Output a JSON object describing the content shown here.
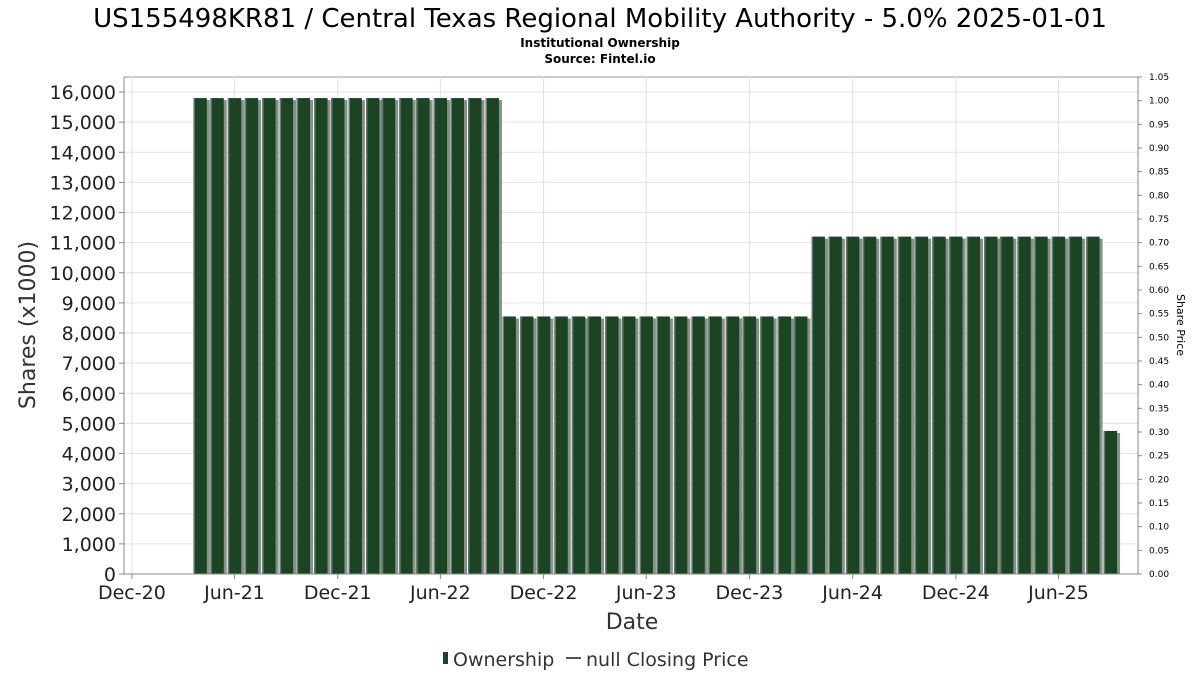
{
  "chart_data": {
    "type": "bar",
    "title": "US155498KR81 / Central Texas Regional Mobility Authority - 5.0% 2025-01-01",
    "subtitle_lines": [
      "Institutional Ownership",
      "Source: Fintel.io"
    ],
    "xlabel": "Date",
    "ylabel": "Shares (x1000)",
    "y2label": "Share Price",
    "x_ticks": [
      "Dec-20",
      "Jun-21",
      "Dec-21",
      "Jun-22",
      "Dec-22",
      "Jun-23",
      "Dec-23",
      "Jun-24",
      "Dec-24",
      "Jun-25"
    ],
    "x_range": [
      "2020-11-17",
      "2025-10-20"
    ],
    "ylim": [
      0,
      16500
    ],
    "y_ticks": [
      "0",
      "1,000",
      "2,000",
      "3,000",
      "4,000",
      "5,000",
      "6,000",
      "7,000",
      "8,000",
      "9,000",
      "10,000",
      "11,000",
      "12,000",
      "13,000",
      "14,000",
      "15,000",
      "16,000"
    ],
    "y2lim": [
      0,
      1.05
    ],
    "y2_ticks": [
      "0.00",
      "0.05",
      "0.10",
      "0.15",
      "0.20",
      "0.25",
      "0.30",
      "0.35",
      "0.40",
      "0.45",
      "0.50",
      "0.55",
      "0.60",
      "0.65",
      "0.70",
      "0.75",
      "0.80",
      "0.85",
      "0.90",
      "0.95",
      "1.00",
      "1.05"
    ],
    "grid": true,
    "legend_position": "bottom",
    "series": [
      {
        "name": "Ownership",
        "color": "#1a4423",
        "x": [
          "2021-04-01",
          "2021-05-01",
          "2021-06-01",
          "2021-07-01",
          "2021-08-01",
          "2021-09-01",
          "2021-10-01",
          "2021-11-01",
          "2021-12-01",
          "2022-01-01",
          "2022-02-01",
          "2022-03-01",
          "2022-04-01",
          "2022-05-01",
          "2022-06-01",
          "2022-07-01",
          "2022-08-01",
          "2022-09-01",
          "2022-10-01",
          "2022-11-01",
          "2022-12-01",
          "2023-01-01",
          "2023-02-01",
          "2023-03-01",
          "2023-04-01",
          "2023-05-01",
          "2023-06-01",
          "2023-07-01",
          "2023-08-01",
          "2023-09-01",
          "2023-10-01",
          "2023-11-01",
          "2023-12-01",
          "2024-01-01",
          "2024-02-01",
          "2024-03-01",
          "2024-04-01",
          "2024-05-01",
          "2024-06-01",
          "2024-07-01",
          "2024-08-01",
          "2024-09-01",
          "2024-10-01",
          "2024-11-01",
          "2024-12-01",
          "2025-01-01",
          "2025-02-01",
          "2025-03-01",
          "2025-04-01",
          "2025-05-01",
          "2025-06-01",
          "2025-07-01",
          "2025-08-01",
          "2025-09-01"
        ],
        "values": [
          15800,
          15800,
          15800,
          15800,
          15800,
          15800,
          15800,
          15800,
          15800,
          15800,
          15800,
          15800,
          15800,
          15800,
          15800,
          15800,
          15800,
          15800,
          8550,
          8550,
          8550,
          8550,
          8550,
          8550,
          8550,
          8550,
          8550,
          8550,
          8550,
          8550,
          8550,
          8550,
          8550,
          8550,
          8550,
          8550,
          11200,
          11200,
          11200,
          11200,
          11200,
          11200,
          11200,
          11200,
          11200,
          11200,
          11200,
          11200,
          11200,
          11200,
          11200,
          11200,
          11200,
          4750
        ]
      }
    ],
    "legend": [
      {
        "label": "Ownership",
        "marker": "bar",
        "color": "#1a4423"
      },
      {
        "label": "null Closing Price",
        "marker": "line",
        "color": "#555555"
      }
    ]
  }
}
